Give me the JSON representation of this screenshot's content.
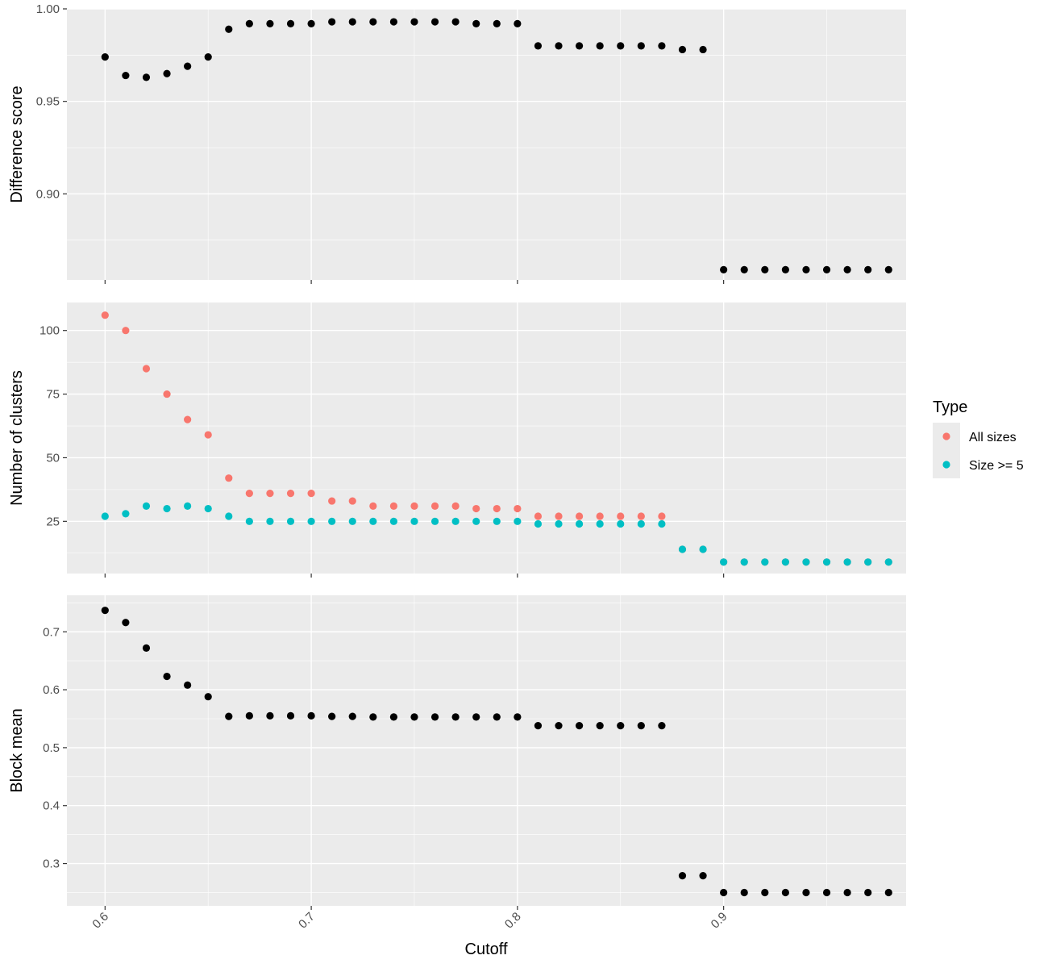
{
  "chart_data": {
    "type": "scatter",
    "xlabel": "Cutoff",
    "x_ticks": [
      0.6,
      0.7,
      0.8,
      0.9
    ],
    "x_tick_labels": [
      "0.6",
      "0.7",
      "0.8",
      "0.9"
    ],
    "xlim": [
      0.5815,
      0.9885
    ],
    "grid": true,
    "legend": {
      "title": "Type",
      "position": "right",
      "entries": [
        {
          "label": "All sizes",
          "color": "#F8766D"
        },
        {
          "label": "Size >= 5",
          "color": "#00BFC4"
        }
      ]
    },
    "x": [
      0.6,
      0.61,
      0.62,
      0.63,
      0.64,
      0.65,
      0.66,
      0.67,
      0.68,
      0.69,
      0.7,
      0.71,
      0.72,
      0.73,
      0.74,
      0.75,
      0.76,
      0.77,
      0.78,
      0.79,
      0.8,
      0.81,
      0.82,
      0.83,
      0.84,
      0.85,
      0.86,
      0.87,
      0.88,
      0.89,
      0.9,
      0.91,
      0.92,
      0.93,
      0.94,
      0.95,
      0.96,
      0.97,
      0.98
    ],
    "panels": [
      {
        "ylabel": "Difference score",
        "ylim": [
          0.8535,
          1.0
        ],
        "y_ticks": [
          0.9,
          0.95,
          1.0
        ],
        "y_tick_labels": [
          "0.90",
          "0.95",
          "1.00"
        ],
        "series": [
          {
            "color": "#000000",
            "values": [
              0.974,
              0.964,
              0.963,
              0.965,
              0.969,
              0.974,
              0.989,
              0.992,
              0.992,
              0.992,
              0.992,
              0.993,
              0.993,
              0.993,
              0.993,
              0.993,
              0.993,
              0.993,
              0.992,
              0.992,
              0.992,
              0.98,
              0.98,
              0.98,
              0.98,
              0.98,
              0.98,
              0.98,
              0.978,
              0.978,
              0.859,
              0.859,
              0.859,
              0.859,
              0.859,
              0.859,
              0.859,
              0.859,
              0.859
            ]
          }
        ]
      },
      {
        "ylabel": "Number of clusters",
        "ylim": [
          4.5,
          111
        ],
        "y_ticks": [
          25,
          50,
          75,
          100
        ],
        "y_tick_labels": [
          "25",
          "50",
          "75",
          "100"
        ],
        "series": [
          {
            "name": "All sizes",
            "color": "#F8766D",
            "values": [
              106,
              100,
              85,
              75,
              65,
              59,
              42,
              36,
              36,
              36,
              36,
              33,
              33,
              31,
              31,
              31,
              31,
              31,
              30,
              30,
              30,
              27,
              27,
              27,
              27,
              27,
              27,
              27,
              14,
              14,
              9,
              9,
              9,
              9,
              9,
              9,
              9,
              9,
              9
            ]
          },
          {
            "name": "Size >= 5",
            "color": "#00BFC4",
            "values": [
              27,
              28,
              31,
              30,
              31,
              30,
              27,
              25,
              25,
              25,
              25,
              25,
              25,
              25,
              25,
              25,
              25,
              25,
              25,
              25,
              25,
              24,
              24,
              24,
              24,
              24,
              24,
              24,
              14,
              14,
              9,
              9,
              9,
              9,
              9,
              9,
              9,
              9,
              9
            ]
          }
        ]
      },
      {
        "ylabel": "Block mean",
        "ylim": [
          0.227,
          0.763
        ],
        "y_ticks": [
          0.3,
          0.4,
          0.5,
          0.6,
          0.7
        ],
        "y_tick_labels": [
          "0.3",
          "0.4",
          "0.5",
          "0.6",
          "0.7"
        ],
        "series": [
          {
            "color": "#000000",
            "values": [
              0.737,
              0.716,
              0.672,
              0.623,
              0.608,
              0.588,
              0.554,
              0.555,
              0.555,
              0.555,
              0.555,
              0.554,
              0.554,
              0.553,
              0.553,
              0.553,
              0.553,
              0.553,
              0.553,
              0.553,
              0.553,
              0.538,
              0.538,
              0.538,
              0.538,
              0.538,
              0.538,
              0.538,
              0.279,
              0.279,
              0.25,
              0.25,
              0.25,
              0.25,
              0.25,
              0.25,
              0.25,
              0.25,
              0.25
            ]
          }
        ]
      }
    ]
  }
}
